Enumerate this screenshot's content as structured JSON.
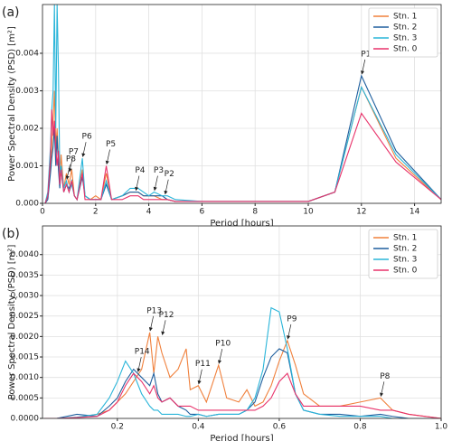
{
  "chart_data": [
    {
      "type": "line",
      "panel_label": "(a)",
      "xlabel": "Period [hours]",
      "ylabel": "Power Spectral Density (PSD) [m²]",
      "x": [
        0.1,
        0.2,
        0.3,
        0.35,
        0.4,
        0.45,
        0.5,
        0.55,
        0.6,
        0.65,
        0.7,
        0.8,
        0.9,
        1.0,
        1.1,
        1.2,
        1.3,
        1.5,
        1.6,
        1.8,
        2.0,
        2.2,
        2.4,
        2.6,
        3.0,
        3.3,
        3.6,
        3.8,
        4.0,
        4.2,
        4.5,
        4.7,
        5.0,
        6.0,
        8.0,
        10.0,
        11.0,
        12.0,
        13.3,
        15.0
      ],
      "series": [
        {
          "name": "Stn. 1",
          "color": "#f0803c",
          "values": [
            0,
            0.0002,
            0.001,
            0.0015,
            0.0022,
            0.003,
            0.0015,
            0.002,
            0.0012,
            0.0006,
            0.0013,
            0.0004,
            0.0008,
            0.0005,
            0.0009,
            0.0002,
            0.0001,
            0.0009,
            0.0002,
            0.0001,
            0.0002,
            0.0001,
            0.0008,
            0.0001,
            0.0002,
            0.0003,
            0.0003,
            0.0002,
            0.0002,
            0.0002,
            0.0001,
            0.0001,
            5e-05,
            5e-05,
            5e-05,
            5e-05,
            0.0003,
            0.0031,
            0.0012,
            0.0001
          ]
        },
        {
          "name": "Stn. 2",
          "color": "#1f5f9e",
          "values": [
            0,
            0.0001,
            0.0008,
            0.0012,
            0.0015,
            0.002,
            0.001,
            0.0018,
            0.0009,
            0.0004,
            0.0009,
            0.0003,
            0.0005,
            0.0004,
            0.0006,
            0.0002,
            0.0001,
            0.0007,
            0.0002,
            0.0001,
            0.0001,
            0.0001,
            0.0005,
            0.0001,
            0.0002,
            0.0003,
            0.0003,
            0.0002,
            0.0002,
            0.0002,
            0.0002,
            0.0001,
            5e-05,
            5e-05,
            5e-05,
            5e-05,
            0.0003,
            0.0034,
            0.0014,
            0.0001
          ]
        },
        {
          "name": "Stn. 3",
          "color": "#2ab5d9",
          "values": [
            0,
            0.0003,
            0.0015,
            0.0025,
            0.003,
            0.0053,
            0.002,
            0.0053,
            0.0036,
            0.0008,
            0.001,
            0.0004,
            0.0006,
            0.0003,
            0.0005,
            0.0002,
            0.0001,
            0.0012,
            0.0002,
            0.0001,
            0.0001,
            0.0001,
            0.0006,
            0.0001,
            0.0002,
            0.0004,
            0.0004,
            0.0003,
            0.0002,
            0.0003,
            0.0002,
            0.0002,
            0.0001,
            5e-05,
            5e-05,
            5e-05,
            0.0003,
            0.0031,
            0.0013,
            0.0001
          ]
        },
        {
          "name": "Stn. 0",
          "color": "#e8336b",
          "values": [
            0,
            0.0002,
            0.0012,
            0.0025,
            0.0018,
            0.0022,
            0.0015,
            0.001,
            0.0014,
            0.0005,
            0.0009,
            0.0003,
            0.0005,
            0.0003,
            0.0006,
            0.0002,
            0.0001,
            0.0008,
            0.0001,
            0.0001,
            0.0001,
            0.0001,
            0.001,
            0.0001,
            0.0001,
            0.0002,
            0.0002,
            0.0001,
            0.0001,
            0.0001,
            0.0001,
            0.0001,
            5e-05,
            5e-05,
            5e-05,
            5e-05,
            0.0003,
            0.0024,
            0.0011,
            0.0001
          ]
        }
      ],
      "xlim": [
        0,
        15
      ],
      "ylim": [
        0,
        0.0053
      ],
      "xticks": [
        0,
        2,
        4,
        6,
        8,
        10,
        12,
        14
      ],
      "yticks": [
        {
          "value": 0,
          "label": "0.000"
        },
        {
          "value": 0.001,
          "label": "0.001"
        },
        {
          "value": 0.002,
          "label": "0.002"
        },
        {
          "value": 0.003,
          "label": "0.003"
        },
        {
          "value": 0.004,
          "label": "0.004"
        }
      ],
      "grid": true,
      "legend": "upper right",
      "annotations": [
        {
          "text": "P1",
          "x": 12,
          "y": 0.0034
        },
        {
          "text": "P2",
          "x": 4.6,
          "y": 0.0002
        },
        {
          "text": "P3",
          "x": 4.2,
          "y": 0.0003
        },
        {
          "text": "P4",
          "x": 3.5,
          "y": 0.0003
        },
        {
          "text": "P5",
          "x": 2.4,
          "y": 0.001
        },
        {
          "text": "P6",
          "x": 1.5,
          "y": 0.0012
        },
        {
          "text": "P7",
          "x": 1.0,
          "y": 0.0008
        },
        {
          "text": "P8",
          "x": 0.9,
          "y": 0.0006
        }
      ]
    },
    {
      "type": "line",
      "panel_label": "(b)",
      "xlabel": "Period [hours]",
      "ylabel": "Power Spectral Density (PSD) [m²]",
      "x": [
        0.02,
        0.05,
        0.1,
        0.15,
        0.18,
        0.2,
        0.22,
        0.24,
        0.26,
        0.28,
        0.29,
        0.3,
        0.31,
        0.33,
        0.35,
        0.37,
        0.38,
        0.4,
        0.42,
        0.45,
        0.47,
        0.5,
        0.52,
        0.54,
        0.56,
        0.58,
        0.6,
        0.62,
        0.64,
        0.66,
        0.7,
        0.75,
        0.8,
        0.85,
        0.88,
        0.92,
        1.0
      ],
      "series": [
        {
          "name": "Stn. 1",
          "color": "#f0803c",
          "values": [
            0,
            0,
            2e-05,
            0.0001,
            0.0002,
            0.0004,
            0.0006,
            0.0009,
            0.0012,
            0.0021,
            0.0011,
            0.002,
            0.0016,
            0.001,
            0.0012,
            0.0017,
            0.0007,
            0.0008,
            0.0004,
            0.0013,
            0.0005,
            0.0004,
            0.0007,
            0.0003,
            0.0004,
            0.0008,
            0.0014,
            0.0019,
            0.0013,
            0.0006,
            0.0003,
            0.0003,
            0.0004,
            0.0005,
            0.0002,
            0.0001,
            0
          ]
        },
        {
          "name": "Stn. 2",
          "color": "#1f5f9e",
          "values": [
            0,
            0,
            0.0001,
            5e-05,
            0.0003,
            0.0005,
            0.0009,
            0.0012,
            0.001,
            0.0008,
            0.0011,
            0.0006,
            0.0004,
            0.0005,
            0.0003,
            0.0002,
            0.0001,
            0.0001,
            5e-05,
            0.0001,
            0.0001,
            0.0001,
            0.0002,
            0.0004,
            0.001,
            0.0015,
            0.0017,
            0.0016,
            0.0006,
            0.0002,
            0.0001,
            0.0001,
            5e-05,
            0.0001,
            5e-05,
            0,
            0
          ]
        },
        {
          "name": "Stn. 3",
          "color": "#2ab5d9",
          "values": [
            0,
            0,
            3e-05,
            0.0001,
            0.0005,
            0.0009,
            0.0014,
            0.0011,
            0.0006,
            0.0003,
            0.0002,
            0.0002,
            0.0001,
            0.0001,
            0.0001,
            5e-05,
            5e-05,
            0.0001,
            5e-05,
            0.0001,
            0.0001,
            0.0001,
            0.0002,
            0.0005,
            0.0012,
            0.0027,
            0.0026,
            0.0017,
            0.0006,
            0.0002,
            0.0001,
            5e-05,
            5e-05,
            5e-05,
            0,
            0,
            0
          ]
        },
        {
          "name": "Stn. 0",
          "color": "#e8336b",
          "values": [
            0,
            0,
            2e-05,
            5e-05,
            0.0002,
            0.0004,
            0.0008,
            0.0011,
            0.0009,
            0.0006,
            0.0008,
            0.0005,
            0.0004,
            0.0005,
            0.0003,
            0.0003,
            0.0003,
            0.0002,
            0.0002,
            0.0002,
            0.0002,
            0.0002,
            0.0002,
            0.0002,
            0.0003,
            0.0005,
            0.0009,
            0.0011,
            0.0006,
            0.0003,
            0.0003,
            0.0003,
            0.0003,
            0.0002,
            0.0002,
            0.0001,
            0
          ]
        }
      ],
      "xlim": [
        0.015,
        1.0
      ],
      "ylim": [
        0,
        0.0047
      ],
      "xticks": [
        0.2,
        0.4,
        0.6,
        0.8,
        {
          "value": 1.0,
          "label": "1.0"
        }
      ],
      "yticks": [
        {
          "value": 0,
          "label": "0.0000"
        },
        {
          "value": 0.0005,
          "label": "0.0005"
        },
        {
          "value": 0.001,
          "label": "0.0010"
        },
        {
          "value": 0.0015,
          "label": "0.0015"
        },
        {
          "value": 0.002,
          "label": "0.0020"
        },
        {
          "value": 0.0025,
          "label": "0.0025"
        },
        {
          "value": 0.003,
          "label": "0.0030"
        },
        {
          "value": 0.0035,
          "label": "0.0035"
        },
        {
          "value": 0.004,
          "label": "0.0040"
        }
      ],
      "grid": true,
      "legend": "upper right",
      "annotations": [
        {
          "text": "P13",
          "x": 0.28,
          "y": 0.0021
        },
        {
          "text": "P12",
          "x": 0.31,
          "y": 0.002
        },
        {
          "text": "P11",
          "x": 0.4,
          "y": 0.0008
        },
        {
          "text": "P10",
          "x": 0.45,
          "y": 0.0013
        },
        {
          "text": "P9",
          "x": 0.62,
          "y": 0.0019
        },
        {
          "text": "P8",
          "x": 0.85,
          "y": 0.0005
        },
        {
          "text": "P14",
          "x": 0.25,
          "y": 0.0011
        }
      ]
    }
  ]
}
